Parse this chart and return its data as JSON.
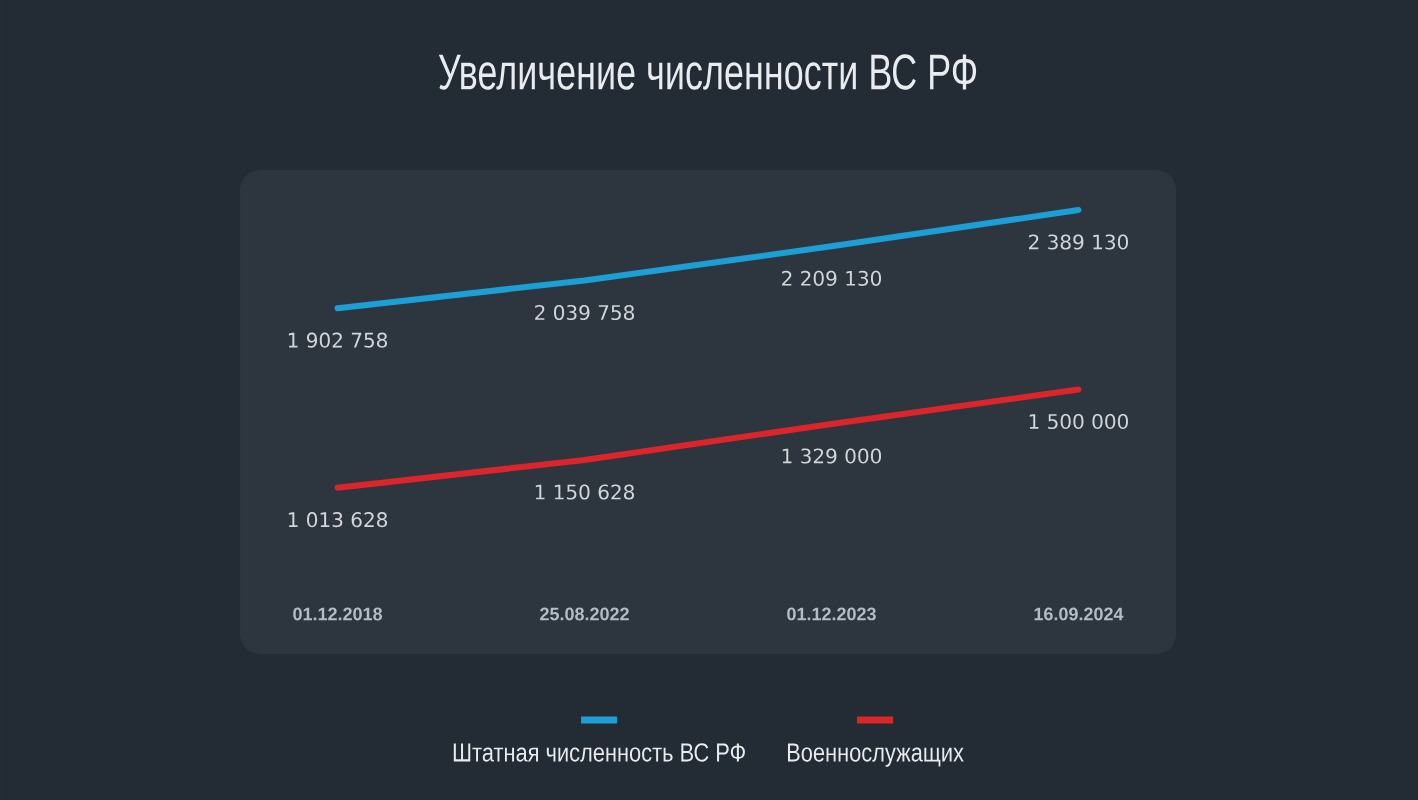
{
  "chart_data": {
    "type": "line",
    "title": "Увеличение численности ВС РФ",
    "categories": [
      "01.12.2018",
      "25.08.2022",
      "01.12.2023",
      "16.09.2024"
    ],
    "series": [
      {
        "name": "Штатная численность ВС РФ",
        "color": "#1c9fd4",
        "values": [
          1902758,
          2039758,
          2209130,
          2389130
        ],
        "value_labels": [
          "1 902 758",
          "2 039 758",
          "2 209 130",
          "2 389 130"
        ]
      },
      {
        "name": "Военнослужащих",
        "color": "#dc252b",
        "values": [
          1013628,
          1150628,
          1329000,
          1500000
        ],
        "value_labels": [
          "1 013 628",
          "1 150 628",
          "1 329 000",
          "1 500 000"
        ]
      }
    ],
    "legend": "bottom",
    "marker": "none",
    "line_style": "solid"
  }
}
